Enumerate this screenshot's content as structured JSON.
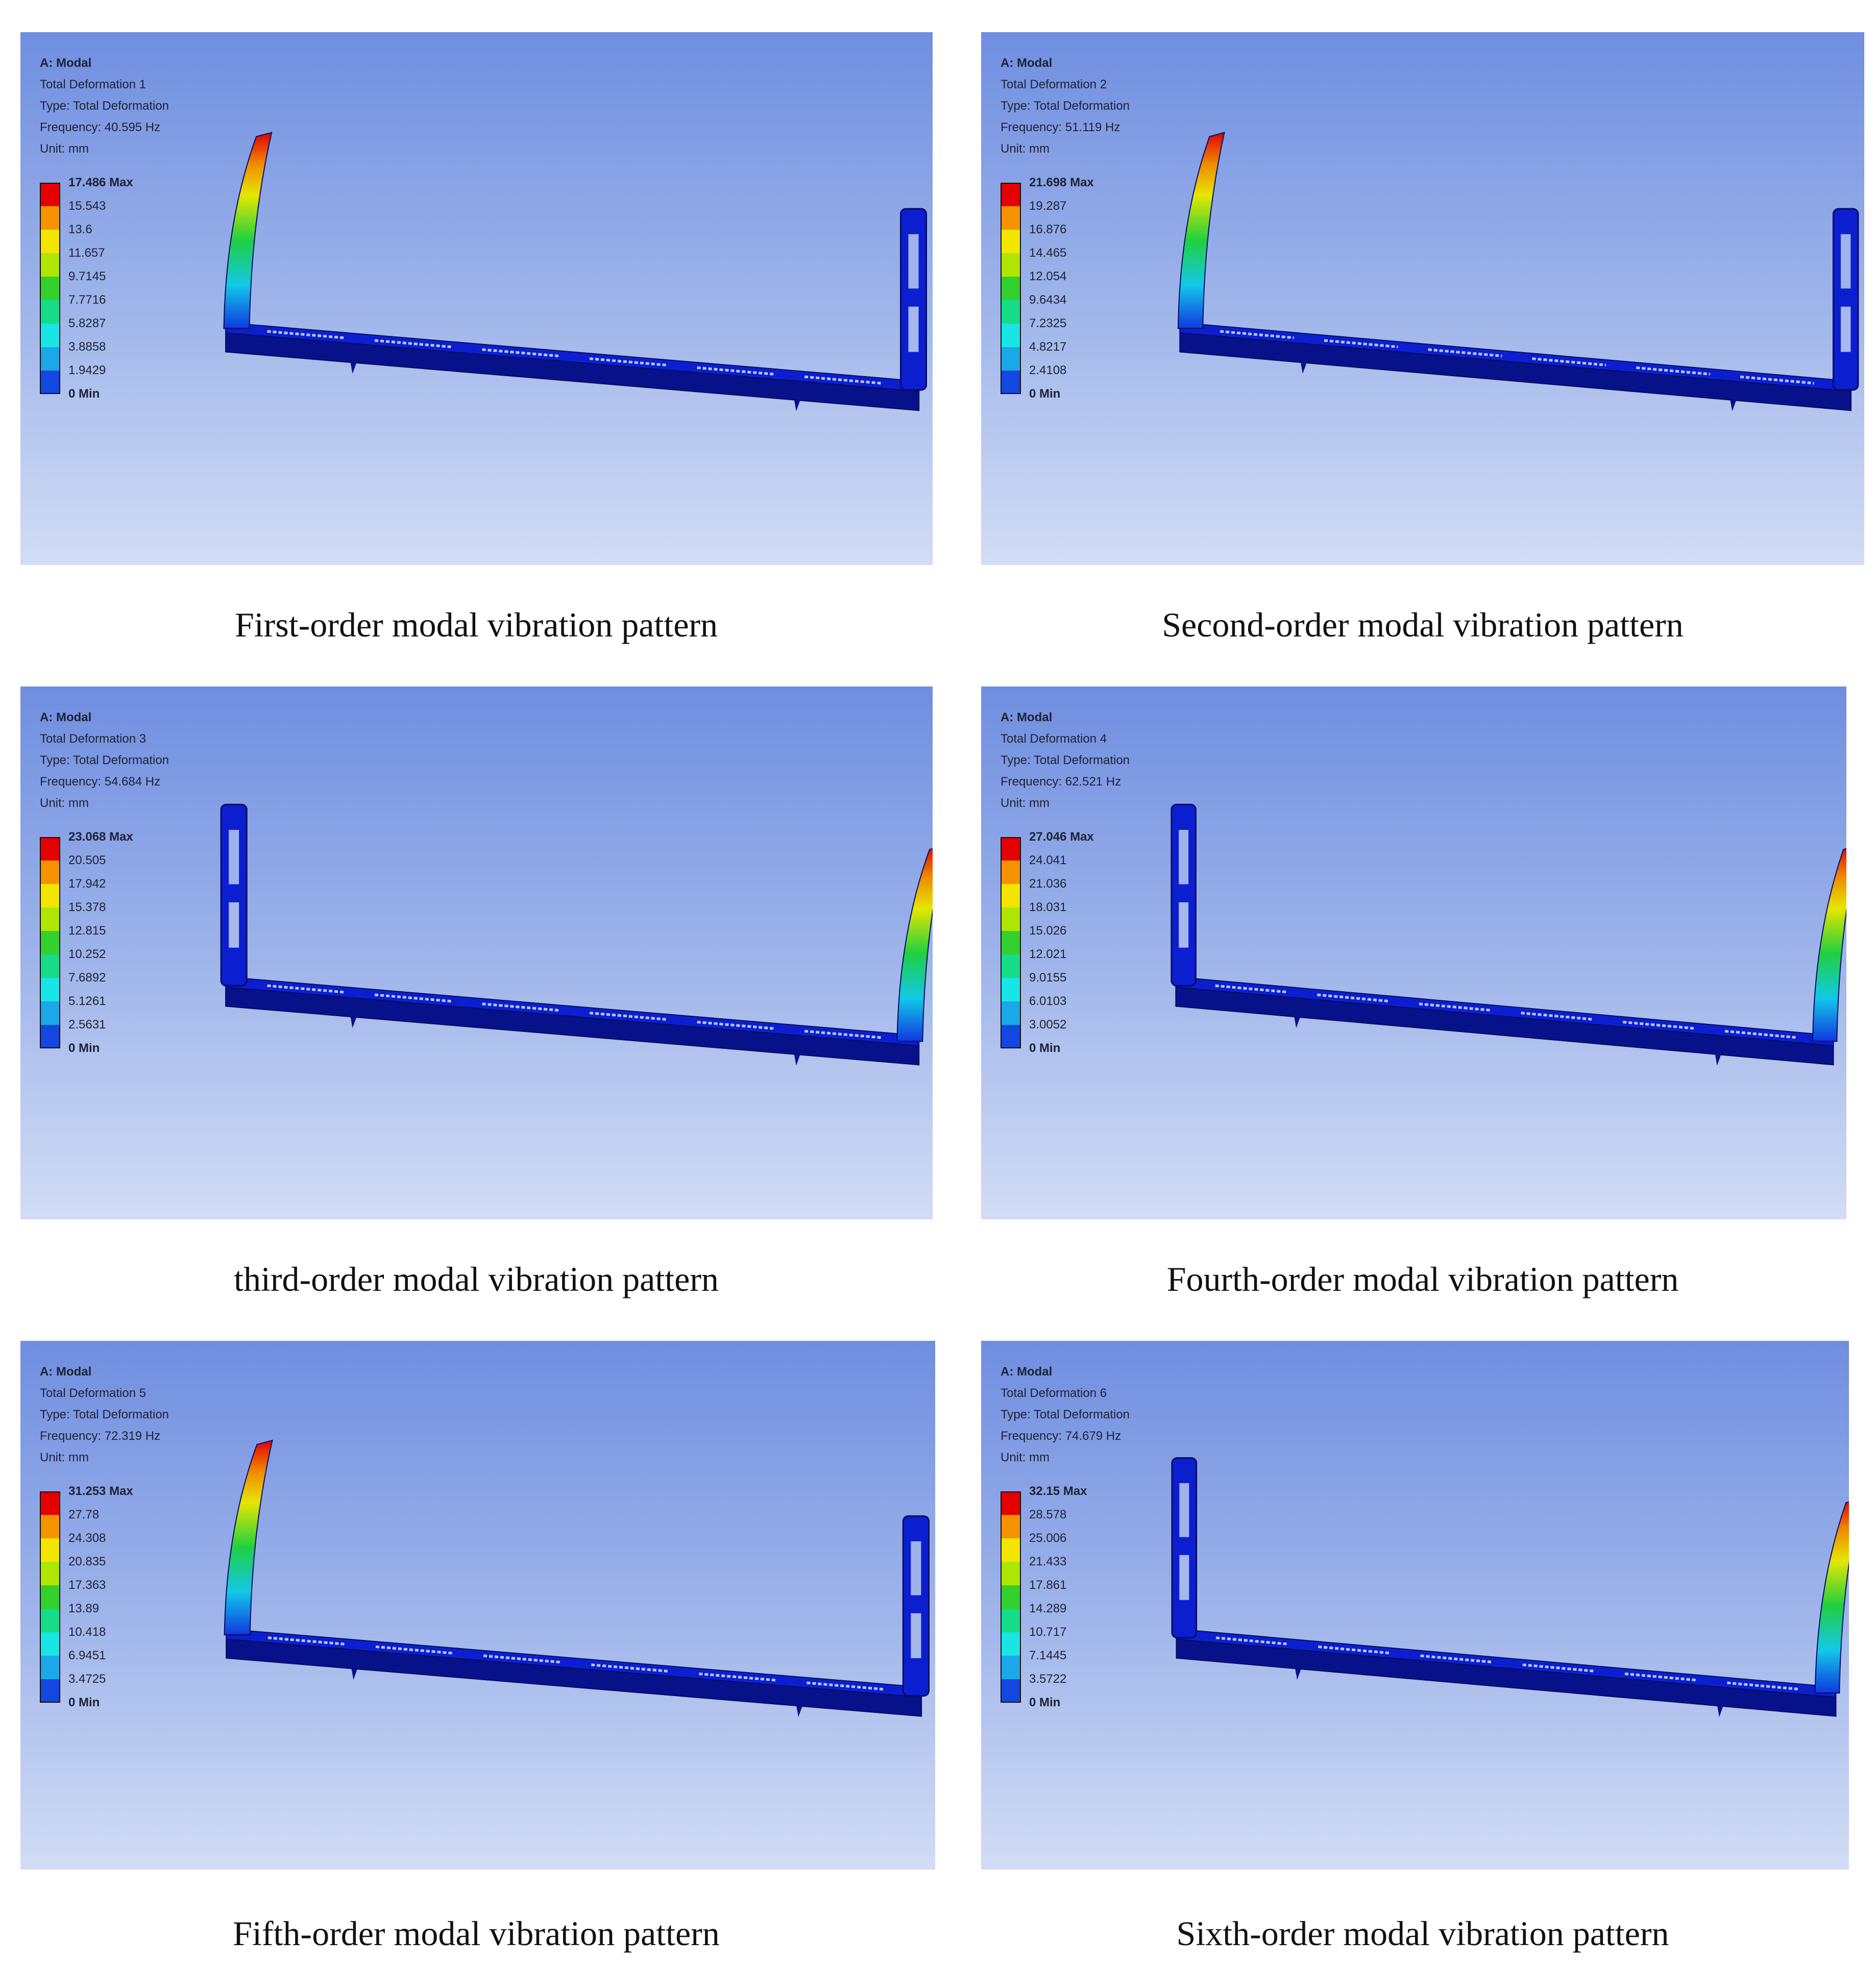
{
  "panels": [
    {
      "analysis": "A: Modal",
      "result": "Total Deformation 1",
      "type": "Type: Total Deformation",
      "frequency": "Frequency: 40.595 Hz",
      "unit": "Unit: mm",
      "legend": [
        "17.486 Max",
        "15.543",
        "13.6",
        "11.657",
        "9.7145",
        "7.7716",
        "5.8287",
        "3.8858",
        "1.9429",
        "0 Min"
      ],
      "deformed_post": "left",
      "caption": "First-order modal vibration pattern"
    },
    {
      "analysis": "A: Modal",
      "result": "Total Deformation 2",
      "type": "Type: Total Deformation",
      "frequency": "Frequency: 51.119 Hz",
      "unit": "Unit: mm",
      "legend": [
        "21.698 Max",
        "19.287",
        "16.876",
        "14.465",
        "12.054",
        "9.6434",
        "7.2325",
        "4.8217",
        "2.4108",
        "0 Min"
      ],
      "deformed_post": "left",
      "caption": "Second-order modal vibration pattern"
    },
    {
      "analysis": "A: Modal",
      "result": "Total Deformation 3",
      "type": "Type: Total Deformation",
      "frequency": "Frequency: 54.684 Hz",
      "unit": "Unit: mm",
      "legend": [
        "23.068 Max",
        "20.505",
        "17.942",
        "15.378",
        "12.815",
        "10.252",
        "7.6892",
        "5.1261",
        "2.5631",
        "0 Min"
      ],
      "deformed_post": "right",
      "caption": "third-order modal vibration pattern"
    },
    {
      "analysis": "A: Modal",
      "result": "Total Deformation 4",
      "type": "Type: Total Deformation",
      "frequency": "Frequency: 62.521 Hz",
      "unit": "Unit: mm",
      "legend": [
        "27.046 Max",
        "24.041",
        "21.036",
        "18.031",
        "15.026",
        "12.021",
        "9.0155",
        "6.0103",
        "3.0052",
        "0 Min"
      ],
      "deformed_post": "right",
      "caption": "Fourth-order modal vibration pattern"
    },
    {
      "analysis": "A: Modal",
      "result": "Total Deformation 5",
      "type": "Type: Total Deformation",
      "frequency": "Frequency: 72.319 Hz",
      "unit": "Unit: mm",
      "legend": [
        "31.253 Max",
        "27.78",
        "24.308",
        "20.835",
        "17.363",
        "13.89",
        "10.418",
        "6.9451",
        "3.4725",
        "0 Min"
      ],
      "deformed_post": "left",
      "caption": "Fifth-order modal vibration pattern"
    },
    {
      "analysis": "A: Modal",
      "result": "Total Deformation 6",
      "type": "Type: Total Deformation",
      "frequency": "Frequency: 74.679 Hz",
      "unit": "Unit: mm",
      "legend": [
        "32.15 Max",
        "28.578",
        "25.006",
        "21.433",
        "17.861",
        "14.289",
        "10.717",
        "7.1445",
        "3.5722",
        "0 Min"
      ],
      "deformed_post": "right",
      "caption": "Sixth-order modal vibration pattern"
    }
  ],
  "legend_colors": [
    "#e50000",
    "#f59200",
    "#f2e600",
    "#aee600",
    "#33d12e",
    "#16dc8a",
    "#19e5e5",
    "#1aa8e8",
    "#1446e0",
    "#0a14d8"
  ]
}
